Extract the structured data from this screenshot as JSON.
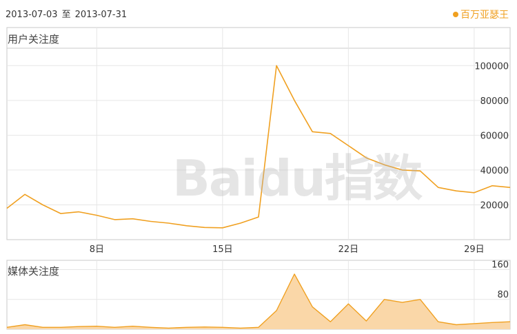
{
  "header": {
    "date_from": "2013-07-03",
    "date_sep": "至",
    "date_to": "2013-07-31",
    "legend_label": "百万亚瑟王"
  },
  "colors": {
    "series": "#f0a020",
    "fill": "#fad7a8",
    "grid": "#e6e6e6",
    "frame": "#c8c8c8"
  },
  "watermark": "Baidu指数",
  "chart_data": [
    {
      "type": "line",
      "title": "用户关注度",
      "x_ticks": [
        "8日",
        "15日",
        "22日",
        "29日"
      ],
      "y_ticks": [
        "20000",
        "40000",
        "60000",
        "80000",
        "100000"
      ],
      "ylim": [
        0,
        110000
      ],
      "xlim": [
        3,
        31
      ],
      "grid": true,
      "series": [
        {
          "x": [
            3,
            4,
            5,
            6,
            7,
            8,
            9,
            10,
            11,
            12,
            13,
            14,
            15,
            16,
            17,
            18,
            19,
            20,
            21,
            22,
            23,
            24,
            25,
            26,
            27,
            28,
            29,
            30,
            31
          ],
          "values": [
            18000,
            26000,
            20000,
            15000,
            16000,
            14000,
            11500,
            12000,
            10500,
            9500,
            8000,
            7000,
            6800,
            9500,
            13000,
            100000,
            80000,
            62000,
            61000,
            54000,
            47000,
            43000,
            40000,
            39500,
            30000,
            28000,
            27000,
            31000,
            30000
          ]
        }
      ]
    },
    {
      "type": "area",
      "title": "媒体关注度",
      "y_ticks": [
        "80",
        "160"
      ],
      "ylim": [
        0,
        185
      ],
      "xlim": [
        3,
        31
      ],
      "grid": true,
      "series": [
        {
          "x": [
            3,
            4,
            5,
            6,
            7,
            8,
            9,
            10,
            11,
            12,
            13,
            14,
            15,
            16,
            17,
            18,
            19,
            20,
            21,
            22,
            23,
            24,
            25,
            26,
            27,
            28,
            29,
            30,
            31
          ],
          "values": [
            5,
            12,
            5,
            5,
            7,
            8,
            5,
            8,
            5,
            3,
            5,
            6,
            5,
            3,
            5,
            50,
            148,
            60,
            20,
            68,
            22,
            80,
            72,
            80,
            20,
            12,
            15,
            18,
            20
          ]
        }
      ]
    }
  ]
}
